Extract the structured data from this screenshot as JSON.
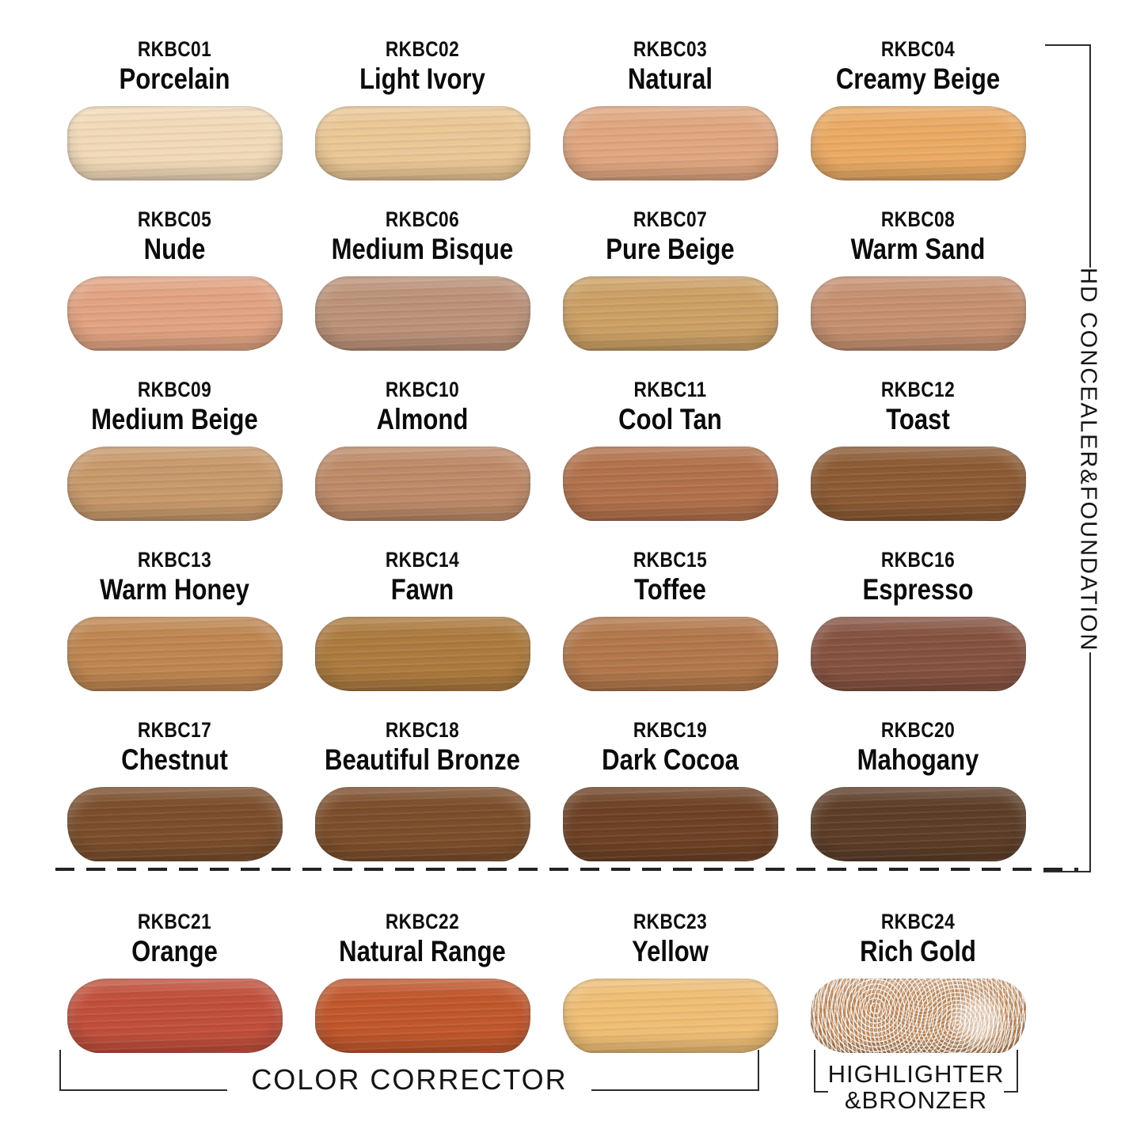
{
  "right_bracket": {
    "label": "HD CONCEALER&FOUNDATION"
  },
  "bottom": {
    "color_corrector_label": "COLOR CORRECTOR",
    "highlighter_label_line1": "HIGHLIGHTER",
    "highlighter_label_line2": "&BRONZER"
  },
  "colors": {
    "annotation_line": "#2c2c2c",
    "text": "#111111"
  },
  "shades": [
    {
      "code": "RKBC01",
      "name": "Porcelain",
      "color": "#F2DAB8"
    },
    {
      "code": "RKBC02",
      "name": "Light Ivory",
      "color": "#EBC795"
    },
    {
      "code": "RKBC03",
      "name": "Natural",
      "color": "#E0A67F"
    },
    {
      "code": "RKBC04",
      "name": "Creamy Beige",
      "color": "#EAAA64"
    },
    {
      "code": "RKBC05",
      "name": "Nude",
      "color": "#E2A382"
    },
    {
      "code": "RKBC06",
      "name": "Medium Bisque",
      "color": "#BC9278"
    },
    {
      "code": "RKBC07",
      "name": "Pure Beige",
      "color": "#CCA065"
    },
    {
      "code": "RKBC08",
      "name": "Warm Sand",
      "color": "#C69070"
    },
    {
      "code": "RKBC09",
      "name": "Medium Beige",
      "color": "#C8996B"
    },
    {
      "code": "RKBC10",
      "name": "Almond",
      "color": "#BE8A68"
    },
    {
      "code": "RKBC11",
      "name": "Cool Tan",
      "color": "#B2714B"
    },
    {
      "code": "RKBC12",
      "name": "Toast",
      "color": "#8C5A33"
    },
    {
      "code": "RKBC13",
      "name": "Warm Honey",
      "color": "#BE8650"
    },
    {
      "code": "RKBC14",
      "name": "Fawn",
      "color": "#AC7A3E"
    },
    {
      "code": "RKBC15",
      "name": "Toffee",
      "color": "#B2774A"
    },
    {
      "code": "RKBC16",
      "name": "Espresso",
      "color": "#865240"
    },
    {
      "code": "RKBC17",
      "name": "Chestnut",
      "color": "#7B4E2C"
    },
    {
      "code": "RKBC18",
      "name": "Beautiful Bronze",
      "color": "#7C4E2B"
    },
    {
      "code": "RKBC19",
      "name": "Dark Cocoa",
      "color": "#6E4225"
    },
    {
      "code": "RKBC20",
      "name": "Mahogany",
      "color": "#5D3E28"
    },
    {
      "code": "RKBC21",
      "name": "Orange",
      "color": "#C14F3B"
    },
    {
      "code": "RKBC22",
      "name": "Natural Range",
      "color": "#C1572C"
    },
    {
      "code": "RKBC23",
      "name": "Yellow",
      "color": "#EFBE75"
    },
    {
      "code": "RKBC24",
      "name": "Rich Gold",
      "color": "#B8855A",
      "glitter": true
    }
  ]
}
